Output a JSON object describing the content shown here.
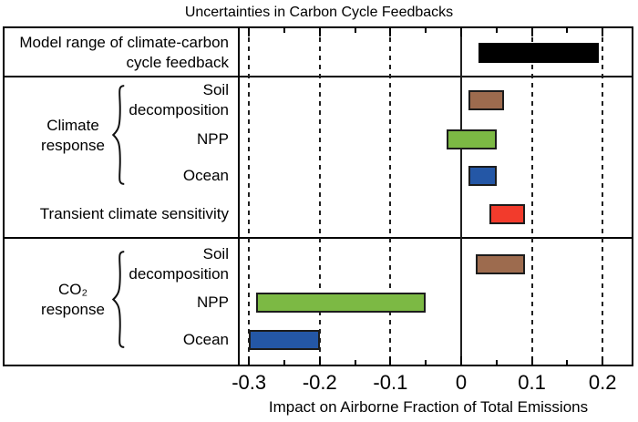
{
  "chart_data": {
    "type": "bar",
    "orientation": "horizontal",
    "title": "Uncertainties in Carbon Cycle Feedbacks",
    "xlabel": "Impact on Airborne Fraction of Total Emissions",
    "xlim": [
      -0.31,
      0.24
    ],
    "grid": "dashed-vertical-at-major-ticks",
    "zero_line": true,
    "xticks": {
      "major_values": [
        -0.3,
        -0.2,
        -0.1,
        0,
        0.1,
        0.2
      ],
      "major_labels": [
        "-0.3",
        "-0.2",
        "-0.1",
        "0",
        "0.1",
        "0.2"
      ],
      "minor_values": [
        -0.25,
        -0.15,
        -0.05,
        0.05,
        0.15
      ]
    },
    "groups": [
      {
        "label": "Climate response",
        "label_lines": "Climate\nresponse"
      },
      {
        "label": "CO₂ response",
        "label_lines": "CO₂\nresponse"
      }
    ],
    "bars": [
      {
        "label": "Model range of climate-carbon cycle feedback",
        "label_lines": "Model range of climate-carbon\ncycle feedback",
        "group": null,
        "min": 0.025,
        "max": 0.195,
        "color": "#000000"
      },
      {
        "label": "Soil decomposition",
        "label_lines": "Soil\ndecomposition",
        "group": 0,
        "min": 0.01,
        "max": 0.06,
        "color": "#9d6b4e"
      },
      {
        "label": "NPP",
        "label_lines": "NPP",
        "group": 0,
        "min": -0.02,
        "max": 0.05,
        "color": "#7cb944"
      },
      {
        "label": "Ocean",
        "label_lines": "Ocean",
        "group": 0,
        "min": 0.01,
        "max": 0.05,
        "color": "#2457a6"
      },
      {
        "label": "Transient climate sensitivity",
        "label_lines": "Transient climate sensitivity",
        "group": null,
        "min": 0.04,
        "max": 0.09,
        "color": "#f23b2c"
      },
      {
        "label": "Soil decomposition",
        "label_lines": "Soil\ndecomposition",
        "group": 1,
        "min": 0.02,
        "max": 0.09,
        "color": "#9d6b4e"
      },
      {
        "label": "NPP",
        "label_lines": "NPP",
        "group": 1,
        "min": -0.29,
        "max": -0.05,
        "color": "#7cb944"
      },
      {
        "label": "Ocean",
        "label_lines": "Ocean",
        "group": 1,
        "min": -0.3,
        "max": -0.2,
        "color": "#2457a6"
      }
    ],
    "sections": [
      {
        "rows": [
          "Model range of climate-carbon cycle feedback"
        ]
      },
      {
        "rows": [
          "Soil decomposition",
          "NPP",
          "Ocean",
          "Transient climate sensitivity"
        ]
      },
      {
        "rows": [
          "Soil decomposition",
          "NPP",
          "Ocean"
        ]
      }
    ]
  }
}
